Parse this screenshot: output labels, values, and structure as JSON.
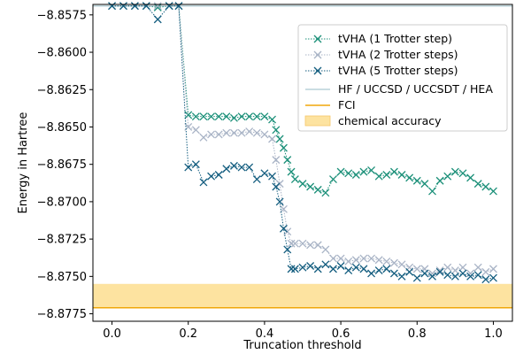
{
  "chart_data": {
    "type": "line",
    "title": "",
    "xlabel": "Truncation threshold",
    "ylabel": "Energy in Hartree",
    "xlim": [
      -0.05,
      1.05
    ],
    "ylim": [
      -8.878,
      -8.8568
    ],
    "xticks": [
      0.0,
      0.2,
      0.4,
      0.6,
      0.8,
      1.0
    ],
    "xtick_labels": [
      "0.0",
      "0.2",
      "0.4",
      "0.6",
      "0.8",
      "1.0"
    ],
    "yticks": [
      -8.8575,
      -8.86,
      -8.8625,
      -8.865,
      -8.8675,
      -8.87,
      -8.8725,
      -8.875,
      -8.8775
    ],
    "ytick_labels": [
      "−8.8575",
      "−8.8600",
      "−8.8625",
      "−8.8650",
      "−8.8675",
      "−8.8700",
      "−8.8725",
      "−8.8750",
      "−8.8775"
    ],
    "grid": false,
    "legend_position": "top-right",
    "reference_lines": {
      "hf": {
        "label": "HF / UCCSD / UCCSDT / HEA",
        "value": -8.8569,
        "color": "#b9d2d8"
      },
      "fci": {
        "label": "FCI",
        "value": -8.8771,
        "color": "#f0a70a"
      }
    },
    "chemical_accuracy": {
      "label": "chemical accuracy",
      "range": [
        -8.8771,
        -8.8755
      ],
      "color": "#fde3a0"
    },
    "series": [
      {
        "name": "tVHA (1 Trotter step)",
        "color": "#1c9079",
        "x": [
          0.0,
          0.03,
          0.06,
          0.09,
          0.12,
          0.15,
          0.175,
          0.2,
          0.22,
          0.24,
          0.26,
          0.28,
          0.3,
          0.32,
          0.34,
          0.36,
          0.38,
          0.4,
          0.42,
          0.43,
          0.44,
          0.45,
          0.46,
          0.47,
          0.48,
          0.5,
          0.52,
          0.54,
          0.56,
          0.58,
          0.6,
          0.62,
          0.64,
          0.66,
          0.68,
          0.7,
          0.72,
          0.74,
          0.76,
          0.78,
          0.8,
          0.82,
          0.84,
          0.86,
          0.88,
          0.9,
          0.92,
          0.94,
          0.96,
          0.98,
          1.0
        ],
        "values": [
          -8.8569,
          -8.8569,
          -8.8569,
          -8.8569,
          -8.857,
          -8.8569,
          -8.8569,
          -8.8642,
          -8.8643,
          -8.8643,
          -8.8643,
          -8.8643,
          -8.8643,
          -8.8644,
          -8.8643,
          -8.8643,
          -8.8643,
          -8.8643,
          -8.8645,
          -8.8652,
          -8.8658,
          -8.8664,
          -8.8672,
          -8.868,
          -8.8685,
          -8.8688,
          -8.869,
          -8.8692,
          -8.8694,
          -8.8685,
          -8.868,
          -8.8681,
          -8.8682,
          -8.868,
          -8.8679,
          -8.8683,
          -8.8682,
          -8.868,
          -8.8682,
          -8.8684,
          -8.8686,
          -8.8688,
          -8.8693,
          -8.8686,
          -8.8683,
          -8.868,
          -8.8681,
          -8.8684,
          -8.8688,
          -8.869,
          -8.8693
        ]
      },
      {
        "name": "tVHA (2 Trotter steps)",
        "color": "#a9b4c6",
        "x": [
          0.0,
          0.03,
          0.06,
          0.09,
          0.12,
          0.15,
          0.175,
          0.2,
          0.22,
          0.24,
          0.26,
          0.28,
          0.3,
          0.32,
          0.34,
          0.36,
          0.38,
          0.4,
          0.42,
          0.43,
          0.44,
          0.45,
          0.46,
          0.47,
          0.48,
          0.5,
          0.52,
          0.54,
          0.56,
          0.58,
          0.6,
          0.62,
          0.64,
          0.66,
          0.68,
          0.7,
          0.72,
          0.74,
          0.76,
          0.78,
          0.8,
          0.82,
          0.84,
          0.86,
          0.88,
          0.9,
          0.92,
          0.94,
          0.96,
          0.98,
          1.0
        ],
        "values": [
          -8.8569,
          -8.8569,
          -8.8569,
          -8.8569,
          -8.8569,
          -8.8569,
          -8.8569,
          -8.865,
          -8.8652,
          -8.8657,
          -8.8655,
          -8.8655,
          -8.8654,
          -8.8654,
          -8.8654,
          -8.8653,
          -8.8654,
          -8.8655,
          -8.8658,
          -8.8672,
          -8.8688,
          -8.8705,
          -8.872,
          -8.8728,
          -8.8728,
          -8.8728,
          -8.8729,
          -8.8729,
          -8.8732,
          -8.8738,
          -8.8738,
          -8.874,
          -8.8739,
          -8.8738,
          -8.8738,
          -8.8739,
          -8.874,
          -8.8741,
          -8.8742,
          -8.8744,
          -8.8745,
          -8.8745,
          -8.8748,
          -8.8746,
          -8.8744,
          -8.8746,
          -8.8744,
          -8.8748,
          -8.8744,
          -8.8747,
          -8.8745
        ]
      },
      {
        "name": "tVHA (5 Trotter steps)",
        "color": "#135d7f",
        "x": [
          0.0,
          0.03,
          0.06,
          0.09,
          0.12,
          0.15,
          0.175,
          0.2,
          0.22,
          0.24,
          0.26,
          0.28,
          0.3,
          0.32,
          0.34,
          0.36,
          0.38,
          0.4,
          0.42,
          0.43,
          0.44,
          0.45,
          0.46,
          0.47,
          0.48,
          0.5,
          0.52,
          0.54,
          0.56,
          0.58,
          0.6,
          0.62,
          0.64,
          0.66,
          0.68,
          0.7,
          0.72,
          0.74,
          0.76,
          0.78,
          0.8,
          0.82,
          0.84,
          0.86,
          0.88,
          0.9,
          0.92,
          0.94,
          0.96,
          0.98,
          1.0
        ],
        "values": [
          -8.8569,
          -8.8569,
          -8.8569,
          -8.8569,
          -8.8578,
          -8.8569,
          -8.8569,
          -8.8677,
          -8.8675,
          -8.8687,
          -8.8683,
          -8.8682,
          -8.8678,
          -8.8676,
          -8.8677,
          -8.8677,
          -8.8685,
          -8.8681,
          -8.8683,
          -8.869,
          -8.87,
          -8.8718,
          -8.8732,
          -8.8745,
          -8.8745,
          -8.8744,
          -8.8743,
          -8.8745,
          -8.8742,
          -8.8745,
          -8.8743,
          -8.8746,
          -8.8744,
          -8.8745,
          -8.8748,
          -8.8746,
          -8.8745,
          -8.8748,
          -8.875,
          -8.8747,
          -8.8751,
          -8.8748,
          -8.875,
          -8.8747,
          -8.8749,
          -8.875,
          -8.8748,
          -8.875,
          -8.8749,
          -8.8752,
          -8.8751
        ]
      }
    ]
  }
}
